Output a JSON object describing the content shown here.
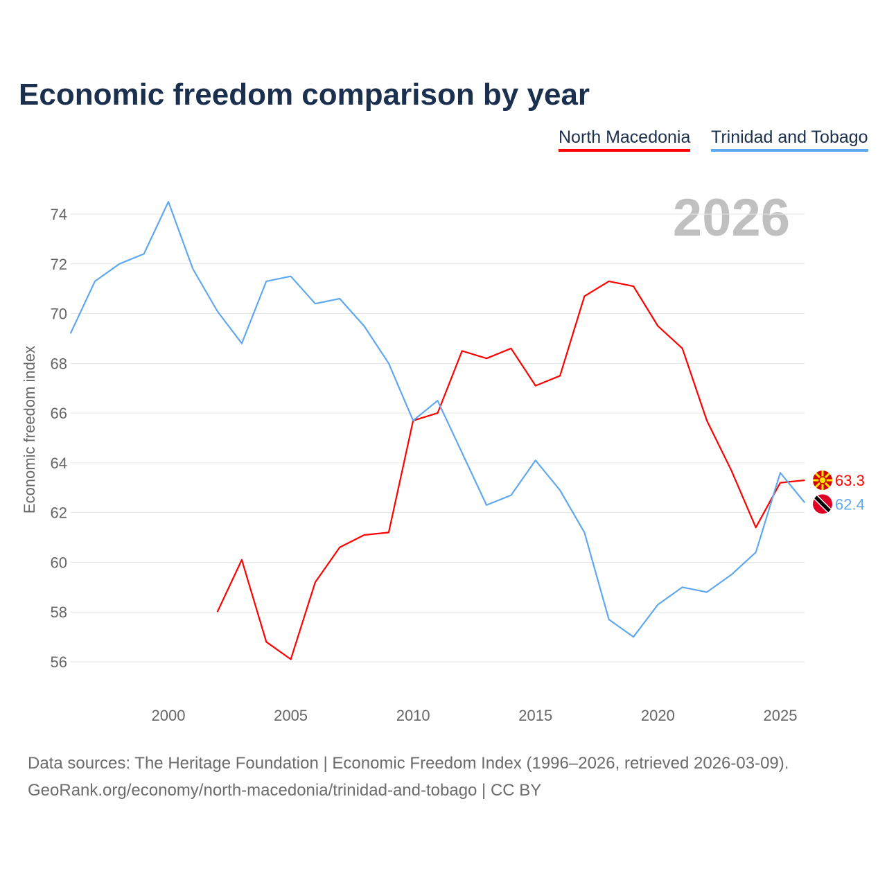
{
  "chart_data": {
    "type": "line",
    "title": "Economic freedom comparison by year",
    "xlabel": "",
    "ylabel": "Economic freedom index",
    "xlim": [
      1996,
      2026
    ],
    "ylim": [
      54.5,
      75.5
    ],
    "x_ticks": [
      2000,
      2005,
      2010,
      2015,
      2020,
      2025
    ],
    "y_ticks": [
      56,
      58,
      60,
      62,
      64,
      66,
      68,
      70,
      72,
      74
    ],
    "grid": true,
    "legend_position": "top-right",
    "year_watermark": "2026",
    "series": [
      {
        "name": "North Macedonia",
        "color": "#ff0000",
        "end_label": "63.3",
        "x": [
          2002,
          2003,
          2004,
          2005,
          2006,
          2007,
          2008,
          2009,
          2010,
          2011,
          2012,
          2013,
          2014,
          2015,
          2016,
          2017,
          2018,
          2019,
          2020,
          2021,
          2022,
          2023,
          2024,
          2025,
          2026
        ],
        "values": [
          58.0,
          60.1,
          56.8,
          56.1,
          59.2,
          60.6,
          61.1,
          61.2,
          65.7,
          66.0,
          68.5,
          68.2,
          68.6,
          67.1,
          67.5,
          70.7,
          71.3,
          71.1,
          69.5,
          68.6,
          65.7,
          63.7,
          61.4,
          63.2,
          63.3
        ]
      },
      {
        "name": "Trinidad and Tobago",
        "color": "#5fa8ee",
        "end_label": "62.4",
        "x": [
          1996,
          1997,
          1998,
          1999,
          2000,
          2001,
          2002,
          2003,
          2004,
          2005,
          2006,
          2007,
          2008,
          2009,
          2010,
          2011,
          2012,
          2013,
          2014,
          2015,
          2016,
          2017,
          2018,
          2019,
          2020,
          2021,
          2022,
          2023,
          2024,
          2025,
          2026
        ],
        "values": [
          69.2,
          71.3,
          72.0,
          72.4,
          74.5,
          71.8,
          70.1,
          68.8,
          71.3,
          71.5,
          70.4,
          70.6,
          69.5,
          68.0,
          65.7,
          66.5,
          64.4,
          62.3,
          62.7,
          64.1,
          62.9,
          61.2,
          57.7,
          57.0,
          58.3,
          59.0,
          58.8,
          59.5,
          60.4,
          63.6,
          62.4
        ]
      }
    ]
  },
  "footer": {
    "line1": "Data sources: The Heritage Foundation | Economic Freedom Index (1996–2026, retrieved 2026-03-09).",
    "line2": "GeoRank.org/economy/north-macedonia/trinidad-and-tobago | CC BY"
  }
}
